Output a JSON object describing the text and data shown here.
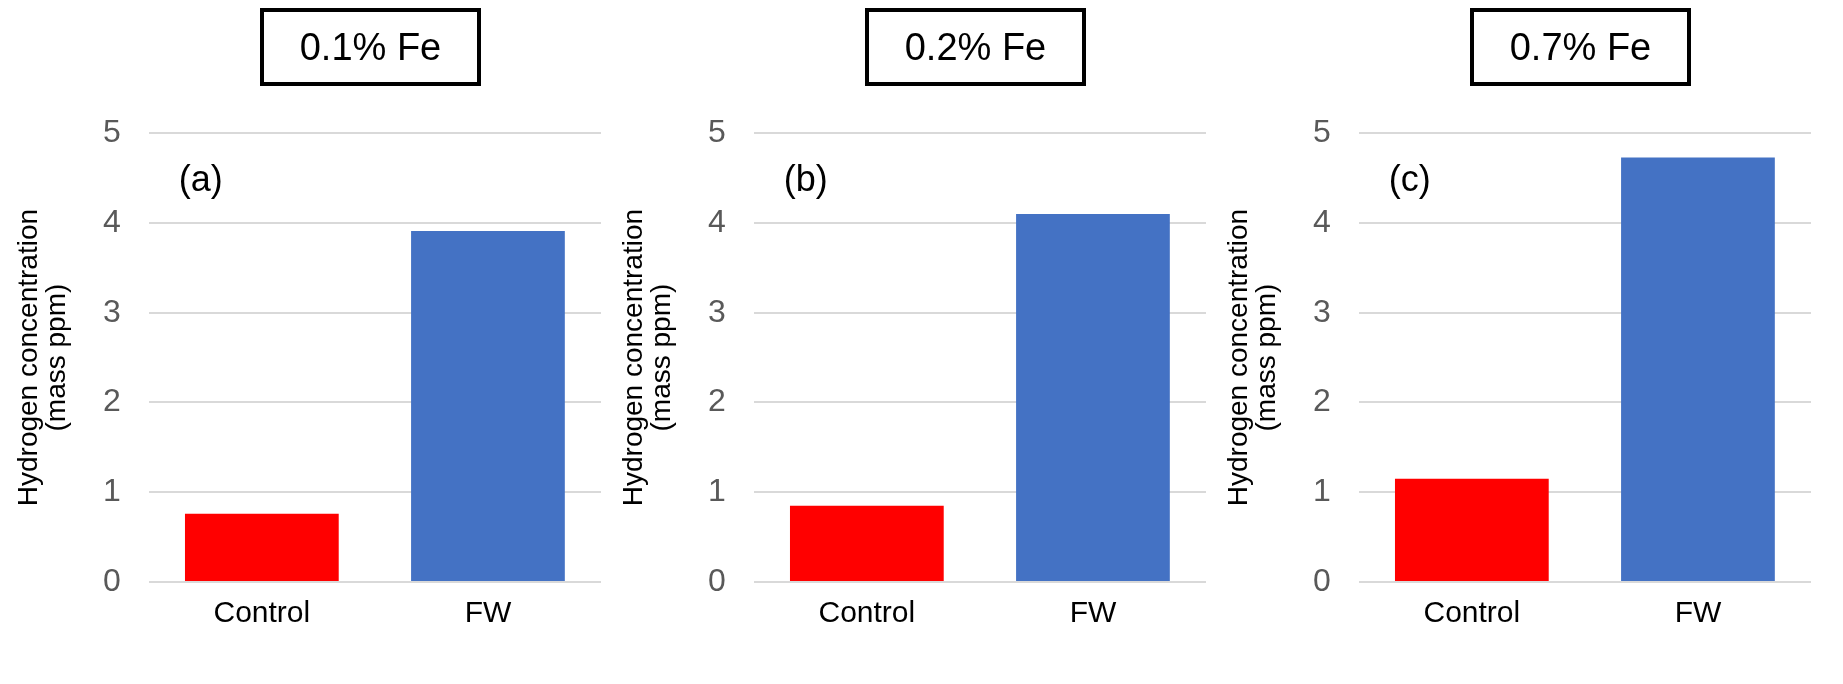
{
  "chart_data": [
    {
      "type": "bar",
      "title": "0.1% Fe",
      "ylabel": "Hydrogen concentration\n(mass ppm)",
      "categories": [
        "Control",
        "FW"
      ],
      "values": [
        0.76,
        3.91
      ],
      "colors": [
        "#ff0000",
        "#4472c4"
      ],
      "ylim": [
        0,
        5
      ],
      "yticks": [
        0,
        1,
        2,
        3,
        4,
        5
      ],
      "grid": "y",
      "legend": false,
      "annotations": [
        "(a)"
      ]
    },
    {
      "type": "bar",
      "title": "0.2% Fe",
      "ylabel": "Hydrogen concentration\n(mass ppm)",
      "categories": [
        "Control",
        "FW"
      ],
      "values": [
        0.85,
        4.1
      ],
      "colors": [
        "#ff0000",
        "#4472c4"
      ],
      "ylim": [
        0,
        5
      ],
      "yticks": [
        0,
        1,
        2,
        3,
        4,
        5
      ],
      "grid": "y",
      "legend": false,
      "annotations": [
        "(b)"
      ]
    },
    {
      "type": "bar",
      "title": "0.7% Fe",
      "ylabel": "Hydrogen concentration\n(mass ppm)",
      "categories": [
        "Control",
        "FW"
      ],
      "values": [
        1.15,
        4.73
      ],
      "colors": [
        "#ff0000",
        "#4472c4"
      ],
      "ylim": [
        0,
        5
      ],
      "yticks": [
        0,
        1,
        2,
        3,
        4,
        5
      ],
      "grid": "y",
      "legend": false,
      "annotations": [
        "(c)"
      ]
    }
  ]
}
